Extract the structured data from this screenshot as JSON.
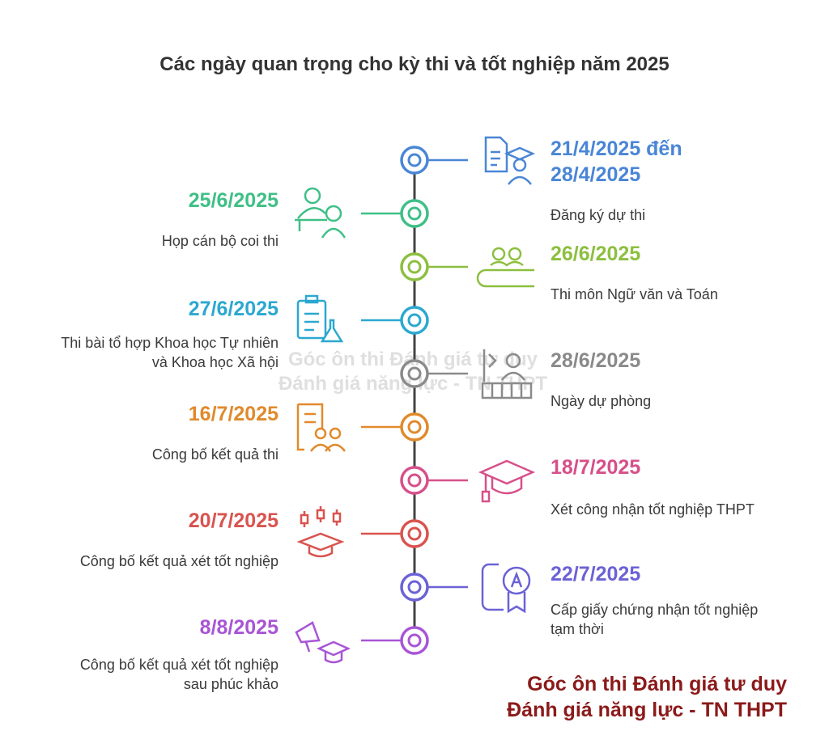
{
  "title": "Các ngày quan trọng cho kỳ thi và tốt nghiệp năm 2025",
  "events": [
    {
      "side": "right",
      "date": "21/4/2025 đến 28/4/2025",
      "date_lines": [
        "21/4/2025 đến",
        "28/4/2025"
      ],
      "desc_lines": [
        "Đăng ký dự thi"
      ],
      "color": "#4a86d6",
      "icon": "document-graduate-icon"
    },
    {
      "side": "left",
      "date": "25/6/2025",
      "date_lines": [
        "25/6/2025"
      ],
      "desc_lines": [
        "Họp cán bộ coi thi"
      ],
      "color": "#3fbf86",
      "icon": "staff-meeting-icon"
    },
    {
      "side": "right",
      "date": "26/6/2025",
      "date_lines": [
        "26/6/2025"
      ],
      "desc_lines": [
        "Thi môn Ngữ văn và Toán"
      ],
      "color": "#8cbf3f",
      "icon": "exam-hall-icon"
    },
    {
      "side": "left",
      "date": "27/6/2025",
      "date_lines": [
        "27/6/2025"
      ],
      "desc_lines": [
        "Thi bài tổ hợp Khoa học Tự nhiên",
        "và Khoa học Xã hội"
      ],
      "color": "#2ba8d0",
      "icon": "clipboard-flask-icon"
    },
    {
      "side": "right",
      "date": "28/6/2025",
      "date_lines": [
        "28/6/2025"
      ],
      "desc_lines": [
        "Ngày dự phòng"
      ],
      "color": "#8a8a8a",
      "icon": "reserve-room-icon"
    },
    {
      "side": "left",
      "date": "16/7/2025",
      "date_lines": [
        "16/7/2025"
      ],
      "desc_lines": [
        "Công bố kết quả thi"
      ],
      "color": "#e08a2c",
      "icon": "results-list-icon"
    },
    {
      "side": "right",
      "date": "18/7/2025",
      "date_lines": [
        "18/7/2025"
      ],
      "desc_lines": [
        "Xét công nhận tốt nghiệp THPT"
      ],
      "color": "#d6508a",
      "icon": "graduation-cap-icon"
    },
    {
      "side": "left",
      "date": "20/7/2025",
      "date_lines": [
        "20/7/2025"
      ],
      "desc_lines": [
        "Công bố kết quả xét tốt nghiệp"
      ],
      "color": "#d9534f",
      "icon": "cap-indicators-icon"
    },
    {
      "side": "right",
      "date": "22/7/2025",
      "date_lines": [
        "22/7/2025"
      ],
      "desc_lines": [
        "Cấp giấy chứng nhận tốt nghiệp",
        "tạm thời"
      ],
      "color": "#6b62d6",
      "icon": "certificate-badge-icon"
    },
    {
      "side": "left",
      "date": "8/8/2025",
      "date_lines": [
        "8/8/2025"
      ],
      "desc_lines": [
        "Công bố kết quả xét tốt nghiệp",
        "sau phúc khảo"
      ],
      "color": "#a855d6",
      "icon": "megaphone-cap-icon"
    }
  ],
  "watermark": [
    "Góc ôn thi Đánh giá tư duy",
    "Đánh giá năng lực - TN THPT"
  ],
  "brand": [
    "Góc ôn thi Đánh giá tư duy",
    "Đánh giá năng lực - TN THPT"
  ],
  "colors": {
    "axis": "#444444",
    "brand": "#8b1a1a"
  }
}
